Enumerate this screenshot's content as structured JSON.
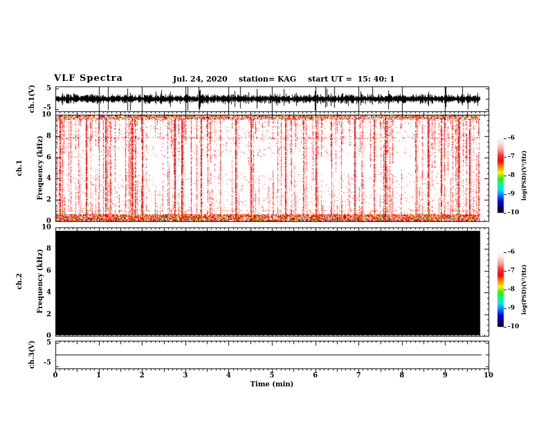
{
  "header": {
    "title": "VLF Spectra",
    "date": "Jul. 24, 2020",
    "station": "station= KAG",
    "start": "start UT =  15: 40: 1"
  },
  "xaxis": {
    "label": "Time (min)",
    "ticks": [
      "0",
      "1",
      "2",
      "3",
      "4",
      "5",
      "6",
      "7",
      "8",
      "9",
      "10"
    ],
    "range_min": [
      0,
      10
    ]
  },
  "panels": {
    "p1": {
      "ylabel": "ch.1(V)",
      "yticks": [
        "5",
        "-5"
      ],
      "yrange": [
        -5,
        5
      ]
    },
    "p2": {
      "ylabel_line1": "ch.1",
      "ylabel_line2": "Frequency (kHz)",
      "yticks": [
        "10",
        "8",
        "6",
        "4",
        "2",
        "0"
      ],
      "yrange": [
        0,
        10
      ]
    },
    "p3": {
      "ylabel_line1": "ch.2",
      "ylabel_line2": "Frequency (kHz)",
      "yticks": [
        "10",
        "8",
        "6",
        "4",
        "2",
        "0"
      ],
      "yrange": [
        0,
        10
      ]
    },
    "p4": {
      "ylabel": "ch.3(V)",
      "yticks": [
        "5",
        "-5"
      ],
      "yrange": [
        -5,
        5
      ]
    }
  },
  "colorbars": {
    "label": "log(PSD)(V²/Hz)",
    "ticks": [
      "-6",
      "-7",
      "-8",
      "-9",
      "-10"
    ],
    "range": [
      -10,
      -6
    ],
    "colormap_stops": [
      "#ffffff",
      "#ffd8d8",
      "#ff9898",
      "#ff3030",
      "#ff0000",
      "#ff8800",
      "#ffee00",
      "#33ee00",
      "#00ff88",
      "#00ddff",
      "#0077ff",
      "#0000ee",
      "#000070",
      "#000008"
    ]
  },
  "colors": {
    "foreground": "#000000",
    "background": "#ffffff",
    "speckle_palette": {
      "red": "#ff0000",
      "dark_red": "#cc0000",
      "orange": "#ff8800",
      "yellow": "#ffee00",
      "green": "#00cc00",
      "cyan": "#00ccff",
      "blue": "#0033ee",
      "black": "#000000",
      "pale_red": "#ff9999"
    }
  },
  "chart_data": [
    {
      "type": "line",
      "name": "ch1_waveform",
      "ylabel": "ch.1(V)",
      "xlim": [
        0,
        10
      ],
      "ylim": [
        -5,
        5
      ],
      "data_end_min": 9.8,
      "description": "dense broadband noise voltage waveform centred on 0 V with impulsive spikes reaching about +/-5 V for the whole record"
    },
    {
      "type": "heatmap",
      "name": "ch1_spectrogram",
      "ylabel": "ch.1 Frequency (kHz)",
      "xlim": [
        0,
        10
      ],
      "ylim": [
        0,
        10
      ],
      "zlabel": "log(PSD)(V²/Hz)",
      "zlim": [
        -10,
        -6
      ],
      "data_end_min": 9.8,
      "features": {
        "strong_band_kHz": [
          0,
          0.5
        ],
        "upper_band_kHz": [
          9.6,
          10
        ],
        "dotted_line_kHz": 7.9,
        "sparse_row_kHz": 1.0,
        "impulsive_streaks": "many narrow vertical red sferic streaks spanning 0-10 kHz",
        "strong_streaks_min": [
          0.1,
          0.7,
          1.15,
          1.75,
          2.0,
          2.75,
          2.9,
          3.35,
          4.15,
          4.5,
          5.3,
          6.0,
          6.9,
          7.6,
          8.6,
          8.9,
          9.3,
          9.55
        ]
      }
    },
    {
      "type": "heatmap",
      "name": "ch2_spectrogram",
      "ylabel": "ch.2 Frequency (kHz)",
      "xlim": [
        0,
        10
      ],
      "ylim": [
        0,
        10
      ],
      "zlabel": "log(PSD)(V²/Hz)",
      "zlim": [
        -10,
        -6
      ],
      "data_end_min": 9.8,
      "description": "entire panel uniformly saturated black at the minimum level (~ -10)"
    },
    {
      "type": "line",
      "name": "ch3_waveform",
      "ylabel": "ch.3(V)",
      "xlim": [
        0,
        10
      ],
      "ylim": [
        -5,
        5
      ],
      "value_V": 0,
      "data_end_min": 9.8,
      "description": "perfectly flat line at ~0 V"
    }
  ]
}
